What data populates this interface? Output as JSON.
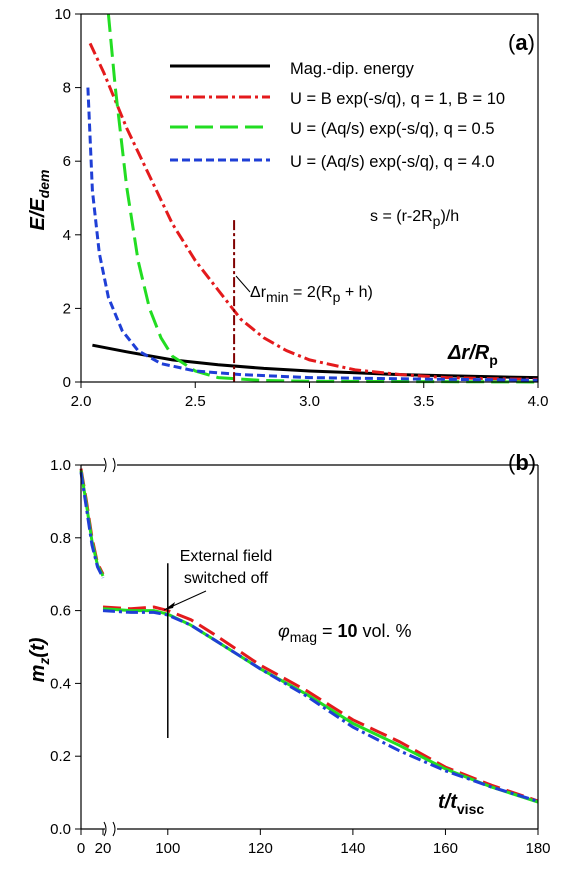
{
  "chart_data": [
    {
      "type": "line",
      "panel_label": "a",
      "y_label": "E/E",
      "y_label_sub": "dem",
      "x_label_a": "Δr",
      "x_label_b": "/R",
      "x_label_sub": "p",
      "xlim": [
        2.0,
        4.0
      ],
      "ylim": [
        0,
        10
      ],
      "x_ticks": [
        "2.0",
        "2.5",
        "3.0",
        "3.5",
        "4.0"
      ],
      "y_ticks": [
        "0",
        "2",
        "4",
        "6",
        "8",
        "10"
      ],
      "legend_position": "top-right",
      "series": [
        {
          "name": "Mag.-dip. energy",
          "color": "#000000",
          "style": "solid",
          "points": [
            [
              2.05,
              1.0
            ],
            [
              2.2,
              0.82
            ],
            [
              2.4,
              0.6
            ],
            [
              2.6,
              0.47
            ],
            [
              2.8,
              0.37
            ],
            [
              3.0,
              0.3
            ],
            [
              3.2,
              0.25
            ],
            [
              3.4,
              0.2
            ],
            [
              3.6,
              0.17
            ],
            [
              3.8,
              0.14
            ],
            [
              4.0,
              0.12
            ]
          ]
        },
        {
          "name": "U = B exp(-s/q), q = 1, B = 10",
          "color": "#e41a1c",
          "style": "dashdot",
          "points": [
            [
              2.04,
              9.2
            ],
            [
              2.1,
              8.4
            ],
            [
              2.2,
              6.9
            ],
            [
              2.3,
              5.6
            ],
            [
              2.4,
              4.3
            ],
            [
              2.5,
              3.3
            ],
            [
              2.6,
              2.5
            ],
            [
              2.7,
              1.7
            ],
            [
              2.8,
              1.2
            ],
            [
              2.9,
              0.85
            ],
            [
              3.0,
              0.6
            ],
            [
              3.2,
              0.33
            ],
            [
              3.4,
              0.2
            ],
            [
              3.6,
              0.12
            ],
            [
              3.8,
              0.09
            ],
            [
              4.0,
              0.07
            ]
          ]
        },
        {
          "name": "U = (Aq/s) exp(-s/q), q = 0.5",
          "color": "#22dd22",
          "style": "longdash",
          "points": [
            [
              2.12,
              10.0
            ],
            [
              2.15,
              8.0
            ],
            [
              2.2,
              5.3
            ],
            [
              2.25,
              3.3
            ],
            [
              2.3,
              2.0
            ],
            [
              2.35,
              1.2
            ],
            [
              2.4,
              0.7
            ],
            [
              2.5,
              0.3
            ],
            [
              2.6,
              0.12
            ],
            [
              2.8,
              0.04
            ],
            [
              3.0,
              0.02
            ],
            [
              3.5,
              0.01
            ],
            [
              4.0,
              0.0
            ]
          ]
        },
        {
          "name": "U = (Aq/s) exp(-s/q), q = 4.0",
          "color": "#1f3fd6",
          "style": "shortdash",
          "points": [
            [
              2.03,
              8.0
            ],
            [
              2.05,
              5.2
            ],
            [
              2.08,
              3.5
            ],
            [
              2.12,
              2.3
            ],
            [
              2.18,
              1.4
            ],
            [
              2.25,
              0.85
            ],
            [
              2.35,
              0.5
            ],
            [
              2.5,
              0.3
            ],
            [
              2.7,
              0.2
            ],
            [
              3.0,
              0.12
            ],
            [
              3.5,
              0.08
            ],
            [
              4.0,
              0.05
            ]
          ]
        }
      ],
      "annotations": {
        "s_definition": "s = (r-2R",
        "s_definition_sub": "p",
        "s_definition_end": ")/h",
        "dr_min_label": "Δr",
        "dr_min_sub": "min",
        "dr_min_rest": " = 2(R",
        "dr_min_sub2": "p",
        "dr_min_end": " + h)",
        "dr_min_x": 2.67,
        "dr_min_line_top": 4.4,
        "dr_min_line_color": "#800000"
      }
    },
    {
      "type": "line",
      "panel_label": "b",
      "y_label": "m",
      "y_label_sub": "z",
      "y_label_end": "(t)",
      "x_label": "t/t",
      "x_label_sub": "visc",
      "ylim": [
        0.0,
        1.0
      ],
      "x_ticks": [
        "0",
        "20",
        "100",
        "120",
        "140",
        "160",
        "180"
      ],
      "y_ticks": [
        "0.0",
        "0.2",
        "0.4",
        "0.6",
        "0.8",
        "1.0"
      ],
      "x_axis_break": true,
      "annotation_text_1": "External field",
      "annotation_text_2": "switched off",
      "annotation_x": 100,
      "annotation_y_range": [
        0.25,
        0.73
      ],
      "phi_symbol": "φ",
      "phi_sub": "mag",
      "phi_eq": " = ",
      "phi_value": "10",
      "phi_unit": " vol. %",
      "segment_before_break": {
        "x": [
          0,
          5,
          10,
          15,
          20
        ],
        "red": [
          0.99,
          0.9,
          0.8,
          0.73,
          0.7
        ],
        "blue": [
          0.98,
          0.88,
          0.78,
          0.72,
          0.69
        ],
        "green": [
          0.985,
          0.89,
          0.79,
          0.725,
          0.695
        ]
      },
      "series": [
        {
          "name": "red",
          "color": "#e41a1c",
          "style": "longdash",
          "points": [
            [
              86,
              0.61
            ],
            [
              92,
              0.605
            ],
            [
              97,
              0.61
            ],
            [
              100,
              0.6
            ],
            [
              105,
              0.575
            ],
            [
              110,
              0.535
            ],
            [
              120,
              0.45
            ],
            [
              130,
              0.38
            ],
            [
              140,
              0.3
            ],
            [
              150,
              0.24
            ],
            [
              160,
              0.17
            ],
            [
              170,
              0.12
            ],
            [
              180,
              0.077
            ]
          ]
        },
        {
          "name": "green",
          "color": "#22dd22",
          "style": "solid",
          "points": [
            [
              86,
              0.605
            ],
            [
              92,
              0.6
            ],
            [
              97,
              0.6
            ],
            [
              100,
              0.59
            ],
            [
              105,
              0.56
            ],
            [
              110,
              0.52
            ],
            [
              120,
              0.44
            ],
            [
              130,
              0.37
            ],
            [
              140,
              0.29
            ],
            [
              150,
              0.23
            ],
            [
              160,
              0.165
            ],
            [
              170,
              0.115
            ],
            [
              180,
              0.074
            ]
          ]
        },
        {
          "name": "blue",
          "color": "#1f3fd6",
          "style": "dashdot",
          "points": [
            [
              86,
              0.6
            ],
            [
              92,
              0.595
            ],
            [
              97,
              0.595
            ],
            [
              100,
              0.588
            ],
            [
              105,
              0.56
            ],
            [
              110,
              0.52
            ],
            [
              120,
              0.44
            ],
            [
              130,
              0.365
            ],
            [
              140,
              0.28
            ],
            [
              150,
              0.215
            ],
            [
              160,
              0.16
            ],
            [
              170,
              0.115
            ],
            [
              180,
              0.076
            ]
          ]
        }
      ]
    }
  ]
}
